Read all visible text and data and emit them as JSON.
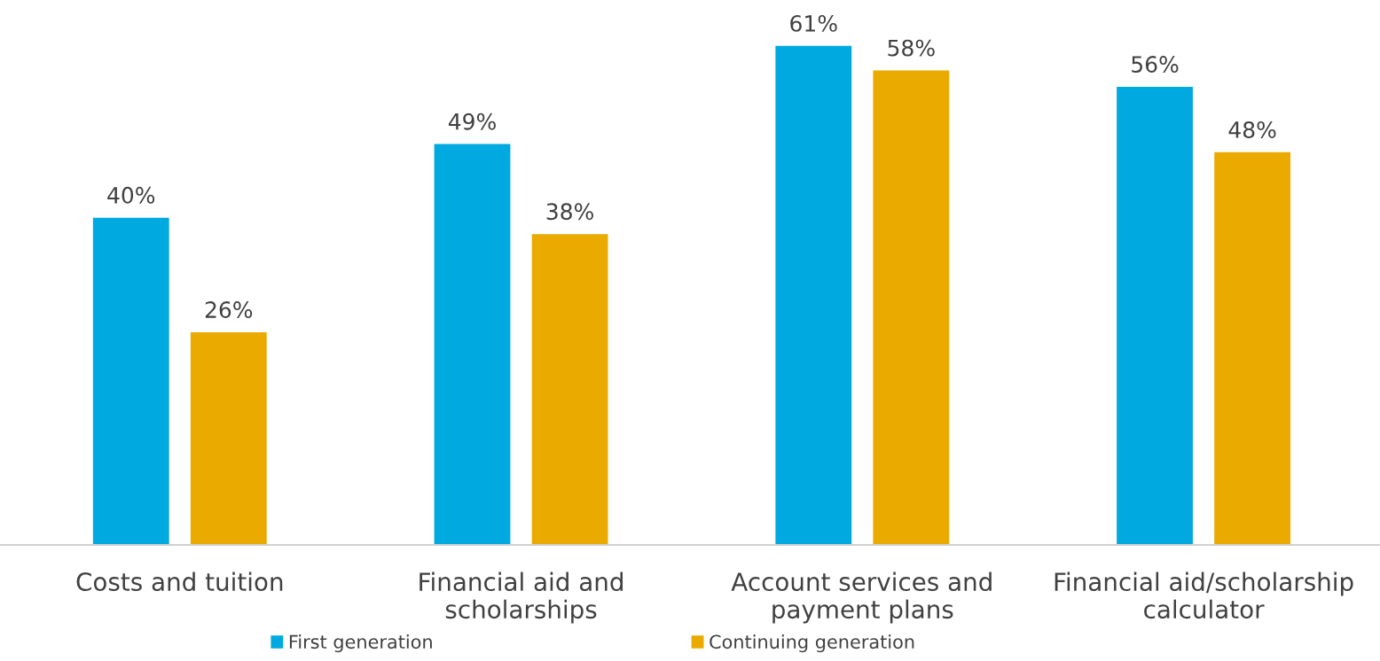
{
  "chart_data": {
    "type": "bar",
    "categories": [
      "Costs and tuition",
      "Financial aid and scholarships",
      "Account services and payment plans",
      "Financial aid/scholarship calculator"
    ],
    "series": [
      {
        "name": "First generation",
        "color": "#00a9e0",
        "values": [
          40,
          49,
          61,
          56
        ],
        "value_labels": [
          "40%",
          "49%",
          "61%",
          "56%"
        ]
      },
      {
        "name": "Continuing generation",
        "color": "#eaaa00",
        "values": [
          26,
          38,
          58,
          48
        ],
        "value_labels": [
          "26%",
          "38%",
          "58%",
          "48%"
        ]
      }
    ],
    "legend": "bottom",
    "grid": false,
    "tick_labels": "x"
  }
}
